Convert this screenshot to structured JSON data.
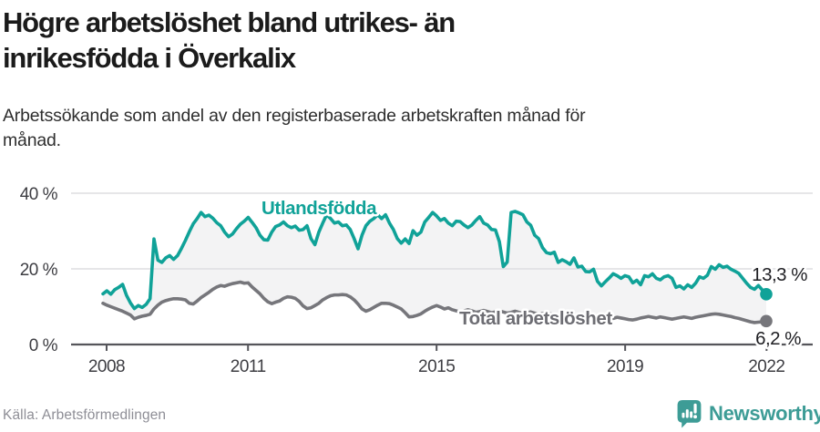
{
  "header": {
    "title_lines": [
      "Högre arbetslöshet bland utrikes- än",
      "inrikesfödda i Överkalix"
    ],
    "subtitle_lines": [
      "Arbetssökande som andel av den registerbaserade arbetskraften månad för",
      "månad."
    ]
  },
  "chart_data": {
    "type": "line",
    "title": "Högre arbetslöshet bland utrikes- än inrikesfödda i Överkalix",
    "subtitle": "Arbetssökande som andel av den registerbaserade arbetskraften månad för månad.",
    "x_start_year": 2008,
    "x_end_label": "2022",
    "points_per_year": 12,
    "grid": "horizontal",
    "legend_position": "inline-labels",
    "ylim": [
      0,
      44
    ],
    "y_ticks": [
      {
        "value": 0,
        "label": "0 %"
      },
      {
        "value": 20,
        "label": "20 %"
      },
      {
        "value": 40,
        "label": "40 %"
      }
    ],
    "x_ticks": [
      {
        "year": 2008,
        "label": "2008"
      },
      {
        "year": 2011,
        "label": "2011"
      },
      {
        "year": 2015,
        "label": "2015"
      },
      {
        "year": 2019,
        "label": "2019"
      },
      {
        "year": 2022,
        "label": "2022"
      }
    ],
    "fill_between_color": "#f3f3f4",
    "series": [
      {
        "name": "Utlandsfödda",
        "color": "#10a298",
        "end_value": 13.3,
        "end_label": "13,3 %",
        "values": [
          13.4,
          14.2,
          13.3,
          14.5,
          15.1,
          15.9,
          13.0,
          11.0,
          9.5,
          10.3,
          9.8,
          10.6,
          12.1,
          27.9,
          22.3,
          21.7,
          22.9,
          23.5,
          22.5,
          23.5,
          25.4,
          27.5,
          29.8,
          31.9,
          33.3,
          34.9,
          33.8,
          34.2,
          33.4,
          32.2,
          31.4,
          29.7,
          28.5,
          29.2,
          30.6,
          31.8,
          32.6,
          33.6,
          32.3,
          30.9,
          28.9,
          27.7,
          27.6,
          29.7,
          31.2,
          31.6,
          32.4,
          31.4,
          30.9,
          31.3,
          30.2,
          30.4,
          31.4,
          28.0,
          26.4,
          29.7,
          32.1,
          34.3,
          33.3,
          32.1,
          32.4,
          31.4,
          31.6,
          30.4,
          28.0,
          25.3,
          28.9,
          31.4,
          32.6,
          33.3,
          34.3,
          33.3,
          34.3,
          32.1,
          30.4,
          28.0,
          26.8,
          27.9,
          26.7,
          30.1,
          28.9,
          29.7,
          32.4,
          33.6,
          34.9,
          34.0,
          32.8,
          33.3,
          32.1,
          31.4,
          32.6,
          32.5,
          31.6,
          30.9,
          31.6,
          32.8,
          33.8,
          32.1,
          31.6,
          30.4,
          30.3,
          27.2,
          20.6,
          21.8,
          34.9,
          35.2,
          34.8,
          34.3,
          32.4,
          31.5,
          28.9,
          28.0,
          25.6,
          24.3,
          24.0,
          24.4,
          21.7,
          22.4,
          21.9,
          21.2,
          22.9,
          20.5,
          20.7,
          19.3,
          19.2,
          19.9,
          16.7,
          15.5,
          16.6,
          17.6,
          18.7,
          18.2,
          17.5,
          18.2,
          17.9,
          16.3,
          17.0,
          15.8,
          18.2,
          17.9,
          18.7,
          17.5,
          17.1,
          17.9,
          18.2,
          17.5,
          15.1,
          15.5,
          14.7,
          15.8,
          15.1,
          16.2,
          17.9,
          17.5,
          18.3,
          20.6,
          19.9,
          21.1,
          20.4,
          20.7,
          19.9,
          19.4,
          18.8,
          17.5,
          16.2,
          15.1,
          14.6,
          15.6,
          14.4,
          13.3
        ]
      },
      {
        "name": "Total arbetslöshet",
        "color": "#76767b",
        "end_value": 6.2,
        "end_label": "6,2 %",
        "values": [
          10.9,
          10.4,
          10.0,
          9.6,
          9.2,
          8.8,
          8.3,
          7.8,
          6.8,
          7.2,
          7.5,
          7.7,
          8.0,
          9.4,
          10.4,
          11.2,
          11.6,
          11.9,
          12.1,
          12.1,
          12.0,
          11.8,
          10.9,
          10.7,
          11.5,
          12.4,
          13.1,
          13.8,
          14.6,
          15.2,
          15.6,
          15.4,
          15.8,
          16.1,
          16.3,
          16.5,
          16.2,
          16.3,
          15.2,
          14.3,
          13.4,
          12.2,
          11.3,
          10.8,
          11.2,
          11.5,
          12.2,
          12.6,
          12.5,
          12.2,
          11.4,
          10.2,
          9.5,
          9.7,
          10.3,
          10.9,
          11.8,
          12.4,
          12.9,
          13.1,
          13.1,
          13.2,
          13.1,
          12.6,
          11.8,
          10.7,
          9.4,
          8.8,
          9.2,
          9.8,
          10.4,
          10.9,
          10.9,
          10.8,
          10.4,
          9.9,
          9.4,
          8.4,
          7.3,
          7.4,
          7.7,
          8.1,
          8.8,
          9.4,
          9.9,
          10.3,
          9.9,
          9.4,
          9.7,
          9.2,
          8.9,
          8.6,
          8.9,
          9.2,
          8.9,
          8.5,
          8.7,
          9.0,
          8.7,
          8.4,
          8.6,
          8.9,
          8.6,
          8.3,
          8.5,
          8.8,
          8.5,
          8.2,
          8.4,
          8.6,
          8.3,
          8.0,
          8.2,
          8.4,
          8.1,
          7.8,
          7.6,
          7.9,
          7.7,
          7.4,
          7.2,
          7.0,
          6.8,
          7.1,
          7.3,
          7.0,
          6.8,
          7.1,
          7.3,
          7.1,
          6.9,
          7.2,
          7.0,
          6.8,
          6.6,
          6.5,
          6.7,
          7.0,
          7.2,
          7.4,
          7.2,
          7.0,
          7.3,
          7.1,
          6.9,
          6.7,
          6.9,
          7.1,
          7.3,
          7.1,
          6.9,
          7.2,
          7.4,
          7.6,
          7.8,
          8.0,
          8.1,
          8.0,
          7.8,
          7.6,
          7.4,
          7.1,
          6.9,
          6.6,
          6.3,
          6.0,
          5.8,
          5.9,
          6.0,
          6.2
        ]
      }
    ]
  },
  "footer": {
    "source": "Källa: Arbetsförmedlingen",
    "brand": "Newsworthy"
  },
  "colors": {
    "accent_teal": "#10a298",
    "line_gray": "#76767b",
    "grid": "#dedee1",
    "axis": "#55555a",
    "fill_between": "#f3f3f4"
  }
}
